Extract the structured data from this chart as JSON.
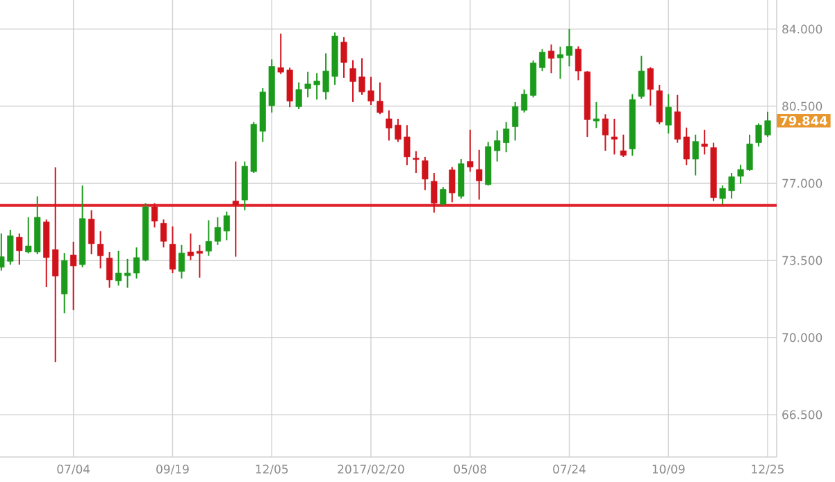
{
  "chart_data": {
    "type": "candlestick",
    "x": [
      "2016-05-09",
      "2016-05-16",
      "2016-05-23",
      "2016-05-30",
      "2016-06-06",
      "2016-06-13",
      "2016-06-20",
      "2016-06-27",
      "2016-07-04",
      "2016-07-11",
      "2016-07-18",
      "2016-07-25",
      "2016-08-01",
      "2016-08-08",
      "2016-08-15",
      "2016-08-22",
      "2016-08-29",
      "2016-09-05",
      "2016-09-12",
      "2016-09-19",
      "2016-09-26",
      "2016-10-03",
      "2016-10-10",
      "2016-10-17",
      "2016-10-24",
      "2016-10-31",
      "2016-11-07",
      "2016-11-14",
      "2016-11-21",
      "2016-11-28",
      "2016-12-05",
      "2016-12-12",
      "2016-12-19",
      "2016-12-26",
      "2017-01-02",
      "2017-01-09",
      "2017-01-16",
      "2017-01-23",
      "2017-01-30",
      "2017-02-06",
      "2017-02-13",
      "2017-02-20",
      "2017-02-27",
      "2017-03-06",
      "2017-03-13",
      "2017-03-20",
      "2017-03-27",
      "2017-04-03",
      "2017-04-10",
      "2017-04-17",
      "2017-04-24",
      "2017-05-01",
      "2017-05-08",
      "2017-05-15",
      "2017-05-22",
      "2017-05-29",
      "2017-06-05",
      "2017-06-12",
      "2017-06-19",
      "2017-06-26",
      "2017-07-03",
      "2017-07-10",
      "2017-07-17",
      "2017-07-24",
      "2017-07-31",
      "2017-08-07",
      "2017-08-14",
      "2017-08-21",
      "2017-08-28",
      "2017-09-04",
      "2017-09-11",
      "2017-09-18",
      "2017-09-25",
      "2017-10-02",
      "2017-10-09",
      "2017-10-16",
      "2017-10-23",
      "2017-10-30",
      "2017-11-06",
      "2017-11-13",
      "2017-11-20",
      "2017-11-27",
      "2017-12-04",
      "2017-12-11",
      "2017-12-18",
      "2017-12-25"
    ],
    "ohlc": [
      [
        73.19,
        74.72,
        73.04,
        73.67
      ],
      [
        73.46,
        74.89,
        73.31,
        74.62
      ],
      [
        74.56,
        74.72,
        73.31,
        73.94
      ],
      [
        73.88,
        75.46,
        73.82,
        74.16
      ],
      [
        73.88,
        76.41,
        73.78,
        75.46
      ],
      [
        75.25,
        75.36,
        72.3,
        73.63
      ],
      [
        73.99,
        77.72,
        68.89,
        72.79
      ],
      [
        71.98,
        73.84,
        71.1,
        73.5
      ],
      [
        73.75,
        74.35,
        71.25,
        73.25
      ],
      [
        73.31,
        76.9,
        73.19,
        75.4
      ],
      [
        75.38,
        75.78,
        73.78,
        74.26
      ],
      [
        74.24,
        74.83,
        73.14,
        73.71
      ],
      [
        73.61,
        73.88,
        72.26,
        72.62
      ],
      [
        72.57,
        73.94,
        72.36,
        72.93
      ],
      [
        72.81,
        73.57,
        72.26,
        72.93
      ],
      [
        72.93,
        74.09,
        72.68,
        73.63
      ],
      [
        73.52,
        76.1,
        73.46,
        75.93
      ],
      [
        75.93,
        76.1,
        75.0,
        75.29
      ],
      [
        75.19,
        75.36,
        74.09,
        74.37
      ],
      [
        74.24,
        75.04,
        72.93,
        73.1
      ],
      [
        73.0,
        74.2,
        72.68,
        73.84
      ],
      [
        73.88,
        74.72,
        73.52,
        73.71
      ],
      [
        73.92,
        74.2,
        72.72,
        73.82
      ],
      [
        73.92,
        75.32,
        73.71,
        74.37
      ],
      [
        74.37,
        75.46,
        74.2,
        75.0
      ],
      [
        74.83,
        75.72,
        74.41,
        75.53
      ],
      [
        76.2,
        77.99,
        73.67,
        76.03
      ],
      [
        76.24,
        77.99,
        75.78,
        77.78
      ],
      [
        77.53,
        79.78,
        77.47,
        79.68
      ],
      [
        79.36,
        81.32,
        78.88,
        81.15
      ],
      [
        80.52,
        82.63,
        80.21,
        82.31
      ],
      [
        82.25,
        83.79,
        81.96,
        82.04
      ],
      [
        82.14,
        82.25,
        80.46,
        80.73
      ],
      [
        80.48,
        81.58,
        80.37,
        81.26
      ],
      [
        81.3,
        82.06,
        80.9,
        81.51
      ],
      [
        81.47,
        82.0,
        80.8,
        81.64
      ],
      [
        81.15,
        82.9,
        80.8,
        82.1
      ],
      [
        81.85,
        83.85,
        81.47,
        83.68
      ],
      [
        83.41,
        83.64,
        81.79,
        82.48
      ],
      [
        82.21,
        82.59,
        80.69,
        81.62
      ],
      [
        81.83,
        82.67,
        81.01,
        81.15
      ],
      [
        81.2,
        81.83,
        80.56,
        80.73
      ],
      [
        80.73,
        81.58,
        80.14,
        80.21
      ],
      [
        79.93,
        80.31,
        78.94,
        79.51
      ],
      [
        79.64,
        79.93,
        78.88,
        79.0
      ],
      [
        79.11,
        79.64,
        77.82,
        78.2
      ],
      [
        78.14,
        78.46,
        77.47,
        78.08
      ],
      [
        78.03,
        78.2,
        76.69,
        77.19
      ],
      [
        77.09,
        77.47,
        75.67,
        76.1
      ],
      [
        76.05,
        76.83,
        75.99,
        76.73
      ],
      [
        77.61,
        77.74,
        76.14,
        76.56
      ],
      [
        76.41,
        78.1,
        76.31,
        77.89
      ],
      [
        77.99,
        79.43,
        77.53,
        77.74
      ],
      [
        77.63,
        78.52,
        76.26,
        77.11
      ],
      [
        76.94,
        78.88,
        76.9,
        78.67
      ],
      [
        78.48,
        79.4,
        77.99,
        78.94
      ],
      [
        78.84,
        79.78,
        78.41,
        79.47
      ],
      [
        79.57,
        80.69,
        78.94,
        80.48
      ],
      [
        80.31,
        81.26,
        80.21,
        81.05
      ],
      [
        80.99,
        82.57,
        80.9,
        82.46
      ],
      [
        82.25,
        83.09,
        82.1,
        82.95
      ],
      [
        83.01,
        83.3,
        82.0,
        82.67
      ],
      [
        82.69,
        83.2,
        81.74,
        82.84
      ],
      [
        82.8,
        84.0,
        82.31,
        83.22
      ],
      [
        83.09,
        83.22,
        81.68,
        82.1
      ],
      [
        82.06,
        82.1,
        79.11,
        79.89
      ],
      [
        79.83,
        80.69,
        79.51,
        79.93
      ],
      [
        79.93,
        80.14,
        78.48,
        79.19
      ],
      [
        79.11,
        79.93,
        78.31,
        79.0
      ],
      [
        78.48,
        79.21,
        78.2,
        78.27
      ],
      [
        78.56,
        81.05,
        78.25,
        80.8
      ],
      [
        80.94,
        82.78,
        80.84,
        82.1
      ],
      [
        82.21,
        82.27,
        80.52,
        81.26
      ],
      [
        81.2,
        81.47,
        79.68,
        79.78
      ],
      [
        79.64,
        81.05,
        79.26,
        80.46
      ],
      [
        80.25,
        81.01,
        78.84,
        79.0
      ],
      [
        79.11,
        79.53,
        77.82,
        78.1
      ],
      [
        78.1,
        79.21,
        77.36,
        78.9
      ],
      [
        78.79,
        79.43,
        78.31,
        78.67
      ],
      [
        78.62,
        78.84,
        76.2,
        76.35
      ],
      [
        76.31,
        76.9,
        76.05,
        76.77
      ],
      [
        76.66,
        77.47,
        76.31,
        77.3
      ],
      [
        77.32,
        77.84,
        76.98,
        77.63
      ],
      [
        77.61,
        79.21,
        77.57,
        78.79
      ],
      [
        78.84,
        79.72,
        78.67,
        79.64
      ],
      [
        79.19,
        80.25,
        79.11,
        79.844
      ]
    ],
    "colors": [
      "#1b9a1b",
      "#1b9a1b",
      "#d0121b",
      "#1b9a1b",
      "#1b9a1b",
      "#d0121b",
      "#d0121b",
      "#1b9a1b",
      "#d0121b",
      "#1b9a1b",
      "#d0121b",
      "#d0121b",
      "#d0121b",
      "#1b9a1b",
      "#1b9a1b",
      "#1b9a1b",
      "#1b9a1b",
      "#d0121b",
      "#d0121b",
      "#d0121b",
      "#1b9a1b",
      "#d0121b",
      "#d0121b",
      "#1b9a1b",
      "#1b9a1b",
      "#1b9a1b",
      "#d0121b",
      "#1b9a1b",
      "#1b9a1b",
      "#1b9a1b",
      "#1b9a1b",
      "#d0121b",
      "#d0121b",
      "#1b9a1b",
      "#1b9a1b",
      "#1b9a1b",
      "#1b9a1b",
      "#1b9a1b",
      "#d0121b",
      "#d0121b",
      "#d0121b",
      "#d0121b",
      "#d0121b",
      "#d0121b",
      "#d0121b",
      "#d0121b",
      "#d0121b",
      "#d0121b",
      "#d0121b",
      "#1b9a1b",
      "#d0121b",
      "#1b9a1b",
      "#d0121b",
      "#d0121b",
      "#1b9a1b",
      "#1b9a1b",
      "#1b9a1b",
      "#1b9a1b",
      "#1b9a1b",
      "#1b9a1b",
      "#1b9a1b",
      "#d0121b",
      "#1b9a1b",
      "#1b9a1b",
      "#d0121b",
      "#d0121b",
      "#1b9a1b",
      "#d0121b",
      "#d0121b",
      "#d0121b",
      "#1b9a1b",
      "#1b9a1b",
      "#d0121b",
      "#d0121b",
      "#1b9a1b",
      "#d0121b",
      "#d0121b",
      "#1b9a1b",
      "#d0121b",
      "#d0121b",
      "#1b9a1b",
      "#1b9a1b",
      "#1b9a1b",
      "#1b9a1b",
      "#1b9a1b",
      "#1b9a1b"
    ],
    "xlim": [
      "2016-05-08",
      "2018-01-01"
    ],
    "xticks": [
      {
        "value": "2016-07-04",
        "label": "07/04"
      },
      {
        "value": "2016-09-19",
        "label": "09/19"
      },
      {
        "value": "2016-12-05",
        "label": "12/05"
      },
      {
        "value": "2017-02-20",
        "label": "2017/02/20"
      },
      {
        "value": "2017-05-08",
        "label": "05/08"
      },
      {
        "value": "2017-07-24",
        "label": "07/24"
      },
      {
        "value": "2017-10-09",
        "label": "10/09"
      },
      {
        "value": "2017-12-25",
        "label": "12/25"
      }
    ],
    "ylim": [
      64.58,
      85.32
    ],
    "yticks": [
      {
        "value": 66.5,
        "label": "66.500"
      },
      {
        "value": 70,
        "label": "70.000"
      },
      {
        "value": 73.5,
        "label": "73.500"
      },
      {
        "value": 77,
        "label": "77.000"
      },
      {
        "value": 80.5,
        "label": "80.500"
      },
      {
        "value": 84,
        "label": "84.000"
      }
    ],
    "grid": true,
    "ref_lines": [
      {
        "axis": "y",
        "value": 76.0,
        "color": "#e0242c"
      }
    ],
    "annotations": [
      "79.844"
    ]
  }
}
